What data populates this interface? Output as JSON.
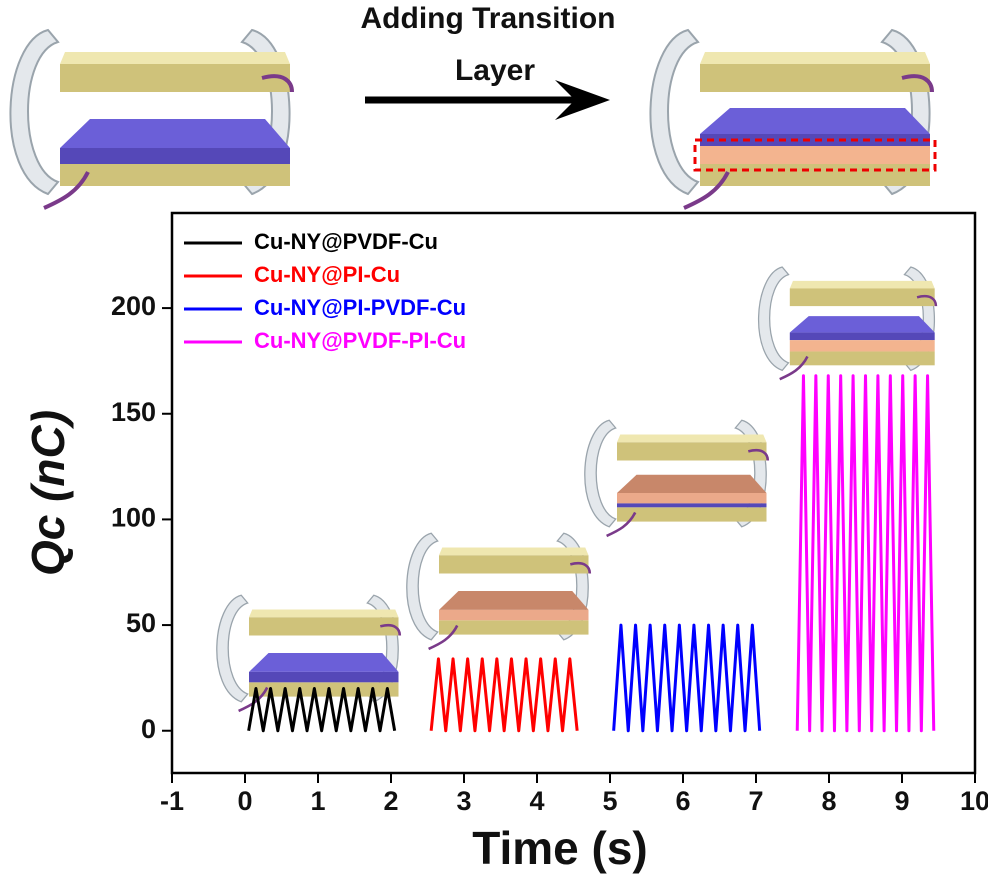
{
  "chart_data": {
    "type": "line",
    "annotations": [
      "Adding Transition",
      "Layer"
    ],
    "xlabel": "Time (s)",
    "ylabel": "Qc (nC)",
    "xlim": [
      -1,
      10
    ],
    "xticks": [
      -1,
      0,
      1,
      2,
      3,
      4,
      5,
      6,
      7,
      8,
      9,
      10
    ],
    "ylim": [
      -20,
      245
    ],
    "yticks": [
      0,
      50,
      100,
      150,
      200
    ],
    "legend": "upper left",
    "series": [
      {
        "name": "Cu-NY@PVDF-Cu",
        "color": "#000000",
        "x": [
          0.05,
          0.15,
          0.25,
          0.35,
          0.45,
          0.55,
          0.65,
          0.75,
          0.85,
          0.95,
          1.05,
          1.15,
          1.25,
          1.35,
          1.45,
          1.55,
          1.65,
          1.75,
          1.85,
          1.95,
          2.05
        ],
        "values": [
          0,
          20,
          0,
          20,
          0,
          20,
          0,
          20,
          0,
          20,
          0,
          20,
          0,
          20,
          0,
          20,
          0,
          20,
          0,
          20,
          0
        ]
      },
      {
        "name": "Cu-NY@PI-Cu",
        "color": "#ff0000",
        "x": [
          2.55,
          2.65,
          2.75,
          2.85,
          2.95,
          3.05,
          3.15,
          3.25,
          3.35,
          3.45,
          3.55,
          3.65,
          3.75,
          3.85,
          3.95,
          4.05,
          4.15,
          4.25,
          4.35,
          4.45,
          4.55
        ],
        "values": [
          0,
          34,
          0,
          34,
          0,
          34,
          0,
          34,
          0,
          34,
          0,
          34,
          0,
          34,
          0,
          34,
          0,
          34,
          0,
          34,
          0
        ]
      },
      {
        "name": "Cu-NY@PI-PVDF-Cu",
        "color": "#0000ff",
        "x": [
          5.05,
          5.15,
          5.25,
          5.35,
          5.45,
          5.55,
          5.65,
          5.75,
          5.85,
          5.95,
          6.05,
          6.15,
          6.25,
          6.35,
          6.45,
          6.55,
          6.65,
          6.75,
          6.85,
          6.95,
          7.05
        ],
        "values": [
          0,
          50,
          0,
          50,
          0,
          50,
          0,
          50,
          0,
          50,
          0,
          50,
          0,
          50,
          0,
          50,
          0,
          50,
          0,
          50,
          0
        ]
      },
      {
        "name": "Cu-NY@PVDF-PI-Cu",
        "color": "#ff00ff",
        "x": [
          7.565,
          7.65,
          7.735,
          7.82,
          7.905,
          7.99,
          8.075,
          8.16,
          8.245,
          8.33,
          8.415,
          8.5,
          8.585,
          8.67,
          8.755,
          8.84,
          8.925,
          9.01,
          9.095,
          9.18,
          9.265,
          9.35,
          9.435
        ],
        "values": [
          0,
          168,
          0,
          168,
          0,
          168,
          0,
          168,
          0,
          168,
          0,
          168,
          0,
          168,
          0,
          168,
          0,
          168,
          0,
          168,
          0,
          168,
          0
        ]
      }
    ]
  }
}
